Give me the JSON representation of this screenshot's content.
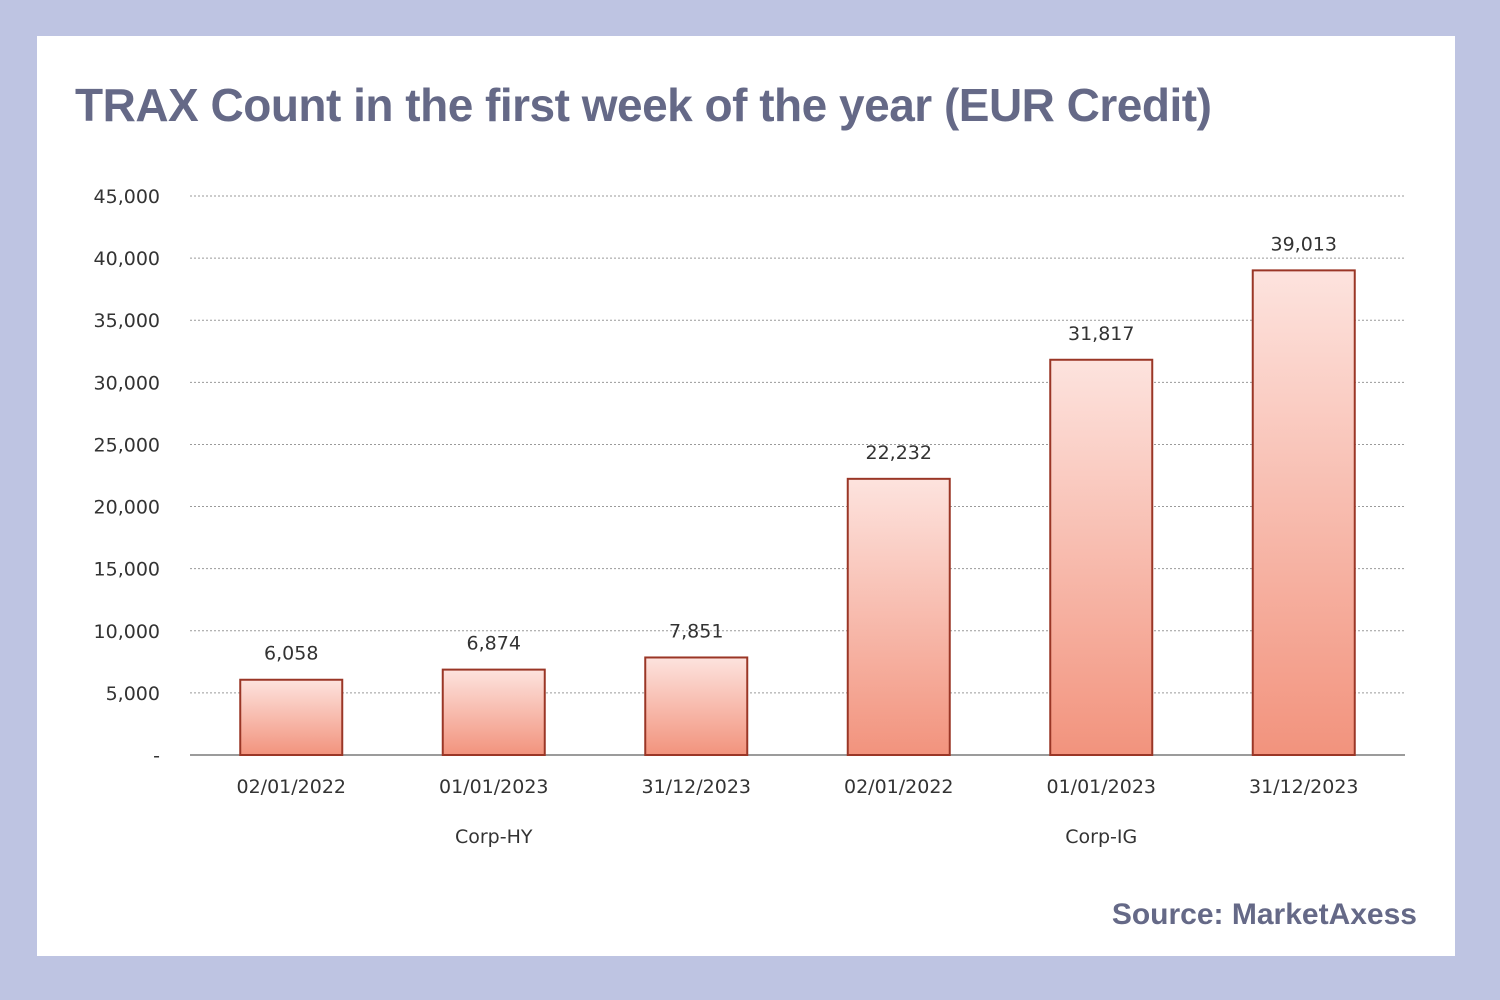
{
  "title": "TRAX Count in the first week of the year (EUR Credit)",
  "source": "Source: MarketAxess",
  "colors": {
    "background": "#bec4e2",
    "card": "#ffffff",
    "title": "#656987",
    "bar_fill_top": "#fde3de",
    "bar_fill_bottom": "#f2937d",
    "bar_stroke": "#9a3626",
    "gridline": "#9a9a9a"
  },
  "chart_data": {
    "type": "bar",
    "title": "TRAX Count in the first week of the year (EUR Credit)",
    "xlabel": "",
    "ylabel": "",
    "ylim": [
      0,
      45000
    ],
    "yticks": [
      0,
      5000,
      10000,
      15000,
      20000,
      25000,
      30000,
      35000,
      40000,
      45000
    ],
    "ytick_labels": [
      "-",
      "5,000",
      "10,000",
      "15,000",
      "20,000",
      "25,000",
      "30,000",
      "35,000",
      "40,000",
      "45,000"
    ],
    "categories": [
      "02/01/2022",
      "01/01/2023",
      "31/12/2023",
      "02/01/2022",
      "01/01/2023",
      "31/12/2023"
    ],
    "groups": [
      {
        "label": "Corp-HY",
        "categories": [
          0,
          1,
          2
        ]
      },
      {
        "label": "Corp-IG",
        "categories": [
          3,
          4,
          5
        ]
      }
    ],
    "values": [
      6058,
      6874,
      7851,
      22232,
      31817,
      39013
    ],
    "data_labels": [
      "6,058",
      "6,874",
      "7,851",
      "22,232",
      "31,817",
      "39,013"
    ],
    "grid": true,
    "legend": "none"
  }
}
